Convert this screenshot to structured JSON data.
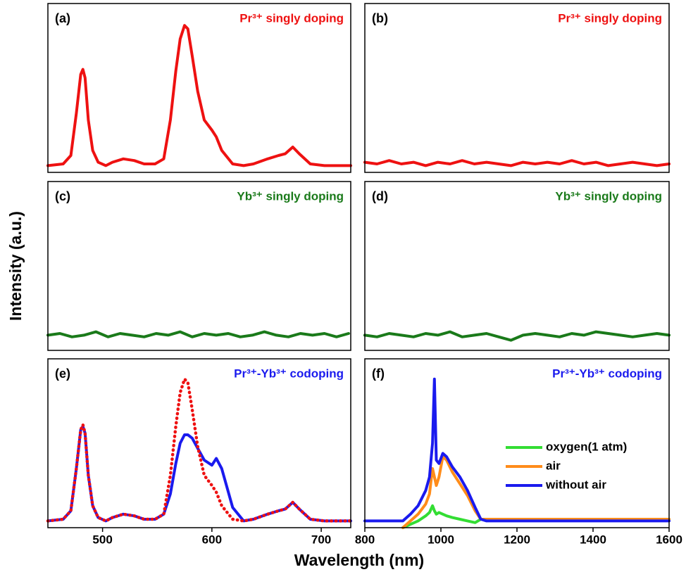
{
  "xlabel": "Wavelength (nm)",
  "ylabel": "Intensity (a.u.)",
  "chart_data": [
    {
      "type": "line",
      "label": "(a)",
      "title": "Pr³⁺ singly doping",
      "title_color": "#ee1111",
      "x": [
        450,
        464,
        471,
        476,
        480,
        482,
        484,
        487,
        491,
        496,
        503,
        509,
        519,
        529,
        538,
        548,
        556,
        562,
        567,
        571,
        575,
        578,
        582,
        587,
        593,
        600,
        604,
        609,
        619,
        629,
        638,
        651,
        661,
        667,
        674,
        680,
        690,
        703,
        727
      ],
      "xlim": [
        450,
        727
      ],
      "ylim": [
        0,
        1
      ],
      "series": [
        {
          "color": "#ee1111",
          "style": "solid",
          "values": [
            0.04,
            0.05,
            0.1,
            0.35,
            0.58,
            0.61,
            0.56,
            0.31,
            0.13,
            0.06,
            0.04,
            0.06,
            0.08,
            0.07,
            0.05,
            0.05,
            0.08,
            0.31,
            0.6,
            0.79,
            0.87,
            0.85,
            0.69,
            0.48,
            0.31,
            0.25,
            0.21,
            0.13,
            0.05,
            0.04,
            0.05,
            0.08,
            0.1,
            0.11,
            0.15,
            0.11,
            0.05,
            0.04,
            0.04
          ]
        }
      ]
    },
    {
      "type": "line",
      "label": "(b)",
      "title": "Pr³⁺ singly doping",
      "title_color": "#ee1111",
      "x": [
        800,
        832,
        864,
        896,
        928,
        960,
        992,
        1024,
        1056,
        1088,
        1120,
        1152,
        1184,
        1216,
        1248,
        1280,
        1312,
        1344,
        1376,
        1408,
        1440,
        1472,
        1504,
        1536,
        1568,
        1600
      ],
      "xlim": [
        800,
        1600
      ],
      "ylim": [
        0,
        1
      ],
      "series": [
        {
          "color": "#ee1111",
          "style": "solid",
          "values": [
            0.06,
            0.05,
            0.07,
            0.05,
            0.06,
            0.04,
            0.06,
            0.05,
            0.07,
            0.05,
            0.06,
            0.05,
            0.04,
            0.06,
            0.05,
            0.06,
            0.05,
            0.07,
            0.05,
            0.06,
            0.04,
            0.05,
            0.06,
            0.05,
            0.04,
            0.05
          ]
        }
      ]
    },
    {
      "type": "line",
      "label": "(c)",
      "title": "Yb³⁺ singly doping",
      "title_color": "#1a7a1a",
      "x": [
        450,
        461,
        472,
        483,
        494,
        505,
        516,
        527,
        538,
        549,
        560,
        571,
        582,
        593,
        604,
        615,
        626,
        637,
        648,
        659,
        670,
        681,
        692,
        703,
        714,
        725
      ],
      "xlim": [
        450,
        727
      ],
      "ylim": [
        0,
        1
      ],
      "series": [
        {
          "color": "#1a7a1a",
          "style": "solid",
          "values": [
            0.09,
            0.1,
            0.08,
            0.09,
            0.11,
            0.08,
            0.1,
            0.09,
            0.08,
            0.1,
            0.09,
            0.11,
            0.08,
            0.1,
            0.09,
            0.1,
            0.08,
            0.09,
            0.11,
            0.09,
            0.08,
            0.1,
            0.09,
            0.1,
            0.08,
            0.1
          ]
        }
      ]
    },
    {
      "type": "line",
      "label": "(d)",
      "title": "Yb³⁺ singly doping",
      "title_color": "#1a7a1a",
      "x": [
        800,
        832,
        864,
        896,
        928,
        960,
        992,
        1024,
        1056,
        1088,
        1120,
        1152,
        1184,
        1216,
        1248,
        1280,
        1312,
        1344,
        1376,
        1408,
        1440,
        1472,
        1504,
        1536,
        1568,
        1600
      ],
      "xlim": [
        800,
        1600
      ],
      "ylim": [
        0,
        1
      ],
      "series": [
        {
          "color": "#1a7a1a",
          "style": "solid",
          "values": [
            0.09,
            0.08,
            0.1,
            0.09,
            0.08,
            0.1,
            0.09,
            0.11,
            0.08,
            0.09,
            0.1,
            0.08,
            0.06,
            0.09,
            0.1,
            0.09,
            0.08,
            0.1,
            0.09,
            0.11,
            0.1,
            0.09,
            0.08,
            0.09,
            0.1,
            0.09
          ]
        }
      ]
    },
    {
      "type": "line",
      "label": "(e)",
      "title": "Pr³⁺-Yb³⁺ codoping",
      "title_color": "#1a1aee",
      "x": [
        450,
        464,
        471,
        476,
        480,
        482,
        484,
        487,
        491,
        496,
        503,
        509,
        519,
        529,
        538,
        548,
        556,
        562,
        567,
        571,
        575,
        578,
        582,
        587,
        593,
        600,
        604,
        609,
        619,
        629,
        638,
        651,
        661,
        667,
        674,
        680,
        690,
        703,
        727
      ],
      "xlim": [
        450,
        727
      ],
      "ylim": [
        0,
        1
      ],
      "xticks": [
        500,
        600,
        700
      ],
      "series": [
        {
          "color": "#1a1aee",
          "style": "solid",
          "values": [
            0.04,
            0.05,
            0.1,
            0.35,
            0.58,
            0.6,
            0.56,
            0.31,
            0.13,
            0.06,
            0.04,
            0.06,
            0.08,
            0.07,
            0.05,
            0.05,
            0.08,
            0.2,
            0.38,
            0.5,
            0.55,
            0.55,
            0.53,
            0.47,
            0.4,
            0.37,
            0.41,
            0.35,
            0.12,
            0.04,
            0.05,
            0.08,
            0.1,
            0.11,
            0.15,
            0.11,
            0.05,
            0.04,
            0.04
          ]
        },
        {
          "color": "#ee1111",
          "style": "dotted",
          "values": [
            0.04,
            0.05,
            0.1,
            0.35,
            0.58,
            0.61,
            0.56,
            0.31,
            0.13,
            0.06,
            0.04,
            0.06,
            0.08,
            0.07,
            0.05,
            0.05,
            0.08,
            0.31,
            0.6,
            0.8,
            0.88,
            0.86,
            0.7,
            0.48,
            0.31,
            0.25,
            0.21,
            0.13,
            0.05,
            0.04,
            0.05,
            0.08,
            0.1,
            0.11,
            0.15,
            0.11,
            0.05,
            0.04,
            0.04
          ]
        }
      ]
    },
    {
      "type": "line",
      "label": "(f)",
      "title": "Pr³⁺-Yb³⁺ codoping",
      "title_color": "#1a1aee",
      "x": [
        800,
        850,
        900,
        920,
        940,
        960,
        970,
        978,
        983,
        988,
        995,
        1005,
        1015,
        1030,
        1050,
        1070,
        1090,
        1105,
        1120,
        1200,
        1300,
        1400,
        1500,
        1600
      ],
      "xlim": [
        800,
        1600
      ],
      "ylim": [
        0,
        1
      ],
      "xticks": [
        800,
        1000,
        1200,
        1400,
        1600
      ],
      "legend": "right",
      "series": [
        {
          "name": "oxygen(1 atm)",
          "color": "#33dd33",
          "style": "solid",
          "values": [
            null,
            null,
            0.0,
            0.02,
            0.04,
            0.07,
            0.09,
            0.13,
            0.1,
            0.08,
            0.09,
            0.08,
            0.07,
            0.06,
            0.05,
            0.04,
            0.03,
            0.05,
            0.05,
            0.05,
            0.05,
            0.05,
            0.05,
            0.05
          ]
        },
        {
          "name": "air",
          "color": "#ff8c1a",
          "style": "solid",
          "values": [
            null,
            null,
            0.0,
            0.04,
            0.08,
            0.14,
            0.2,
            0.35,
            0.3,
            0.25,
            0.3,
            0.42,
            0.4,
            0.33,
            0.26,
            0.19,
            0.1,
            0.05,
            0.05,
            0.05,
            0.05,
            0.05,
            0.05,
            0.05
          ]
        },
        {
          "name": "without air",
          "color": "#1a1aee",
          "style": "solid",
          "values": [
            0.04,
            0.04,
            0.04,
            0.08,
            0.13,
            0.22,
            0.3,
            0.5,
            0.88,
            0.4,
            0.38,
            0.44,
            0.42,
            0.36,
            0.3,
            0.22,
            0.12,
            0.05,
            0.04,
            0.04,
            0.04,
            0.04,
            0.04,
            0.04
          ]
        }
      ]
    }
  ]
}
